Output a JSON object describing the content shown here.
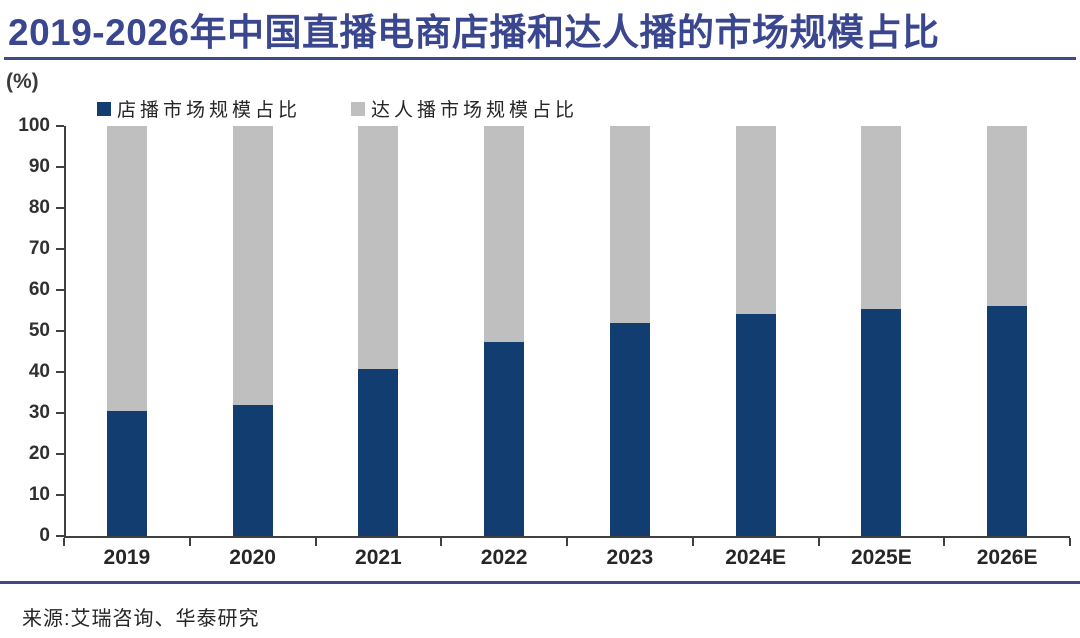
{
  "header": {
    "title": "2019-2026年中国直播电商店播和达人播的市场规模占比"
  },
  "footer": {
    "source": "来源:艾瑞咨询、华泰研究"
  },
  "colors": {
    "title_navy": "#3A478F",
    "divider_navy": "#3E4A85",
    "store_bar_blue": "#113D70",
    "influencer_bar_gray": "#BFBFBF",
    "axis_gray": "#404040"
  },
  "chart_data": {
    "type": "bar",
    "stacked": true,
    "title": "2019-2026年中国直播电商店播和达人播的市场规模占比",
    "unit_label": "(%)",
    "xlabel": "",
    "ylabel": "(%)",
    "ylim": [
      0,
      100
    ],
    "yticks": [
      0,
      10,
      20,
      30,
      40,
      50,
      60,
      70,
      80,
      90,
      100
    ],
    "grid": false,
    "legend_position": "top-left",
    "categories": [
      "2019",
      "2020",
      "2021",
      "2022",
      "2023",
      "2024E",
      "2025E",
      "2026E"
    ],
    "series": [
      {
        "name": "店播市场规模占比",
        "color": "#113D70",
        "values": [
          30.4,
          32.0,
          40.7,
          47.2,
          51.9,
          54.2,
          55.4,
          56.2
        ]
      },
      {
        "name": "达人播市场规模占比",
        "color": "#BFBFBF",
        "values": [
          69.6,
          68.0,
          59.3,
          52.8,
          48.1,
          45.8,
          44.6,
          43.8
        ]
      }
    ]
  }
}
